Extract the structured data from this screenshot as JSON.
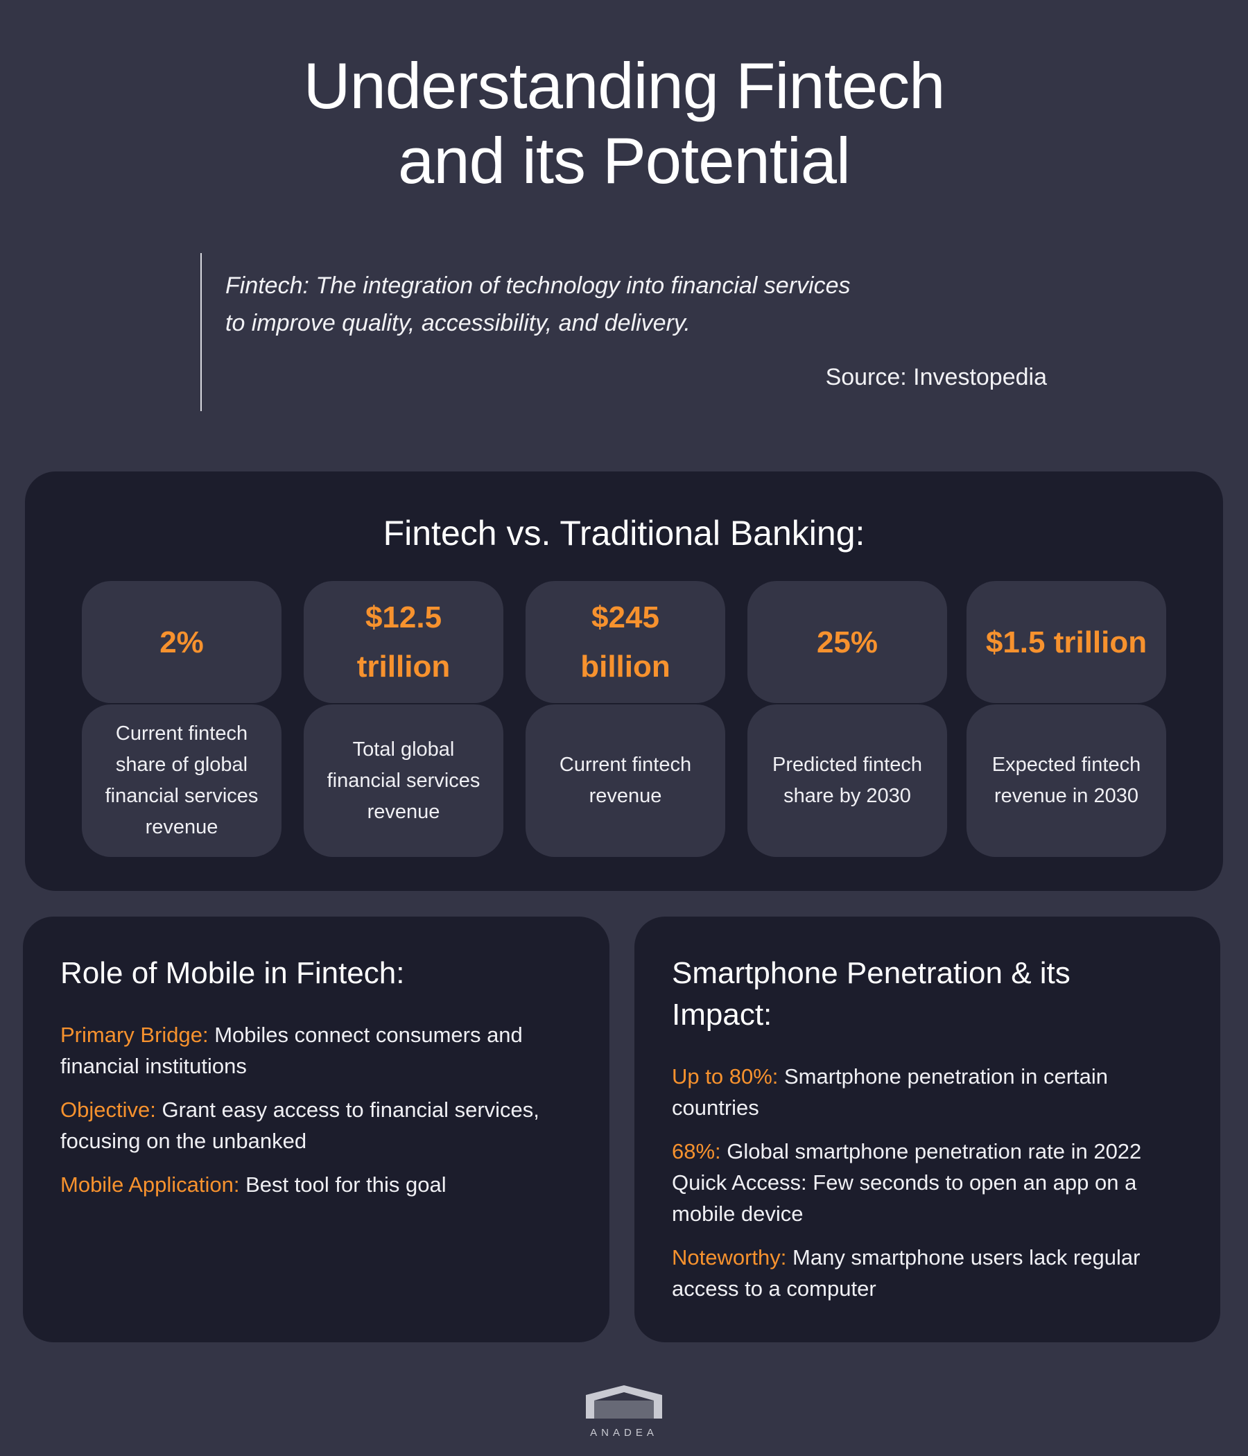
{
  "title": [
    "Understanding Fintech",
    "and its Potential"
  ],
  "definition": {
    "text": [
      "Fintech: The integration of technology into financial services",
      "to improve quality, accessibility, and delivery."
    ],
    "source": "Source: Investopedia"
  },
  "comparison": {
    "title": "Fintech vs. Traditional Banking:",
    "stats": [
      {
        "value": "2%",
        "label": "Current fintech share of global financial services revenue"
      },
      {
        "value": "$12.5 trillion",
        "label": "Total global financial services revenue"
      },
      {
        "value": "$245 billion",
        "label": "Current fintech revenue"
      },
      {
        "value": "25%",
        "label": "Predicted fintech share by 2030"
      },
      {
        "value": "$1.5 trillion",
        "label": "Expected fintech revenue in 2030"
      }
    ]
  },
  "mobile": {
    "title": "Role of Mobile in Fintech:",
    "items": [
      {
        "key": "Primary Bridge:",
        "text": " Mobiles connect consumers and financial institutions"
      },
      {
        "key": "Objective:",
        "text": " Grant easy access to financial services, focusing on the unbanked"
      },
      {
        "key": "Mobile Application:",
        "text": " Best tool for this goal"
      }
    ]
  },
  "smartphone": {
    "title": "Smartphone Penetration & its Impact:",
    "items": [
      {
        "key": "Up to 80%:",
        "text": " Smartphone penetration in certain countries"
      },
      {
        "key": "68%:",
        "text": " Global smartphone penetration rate in 2022 Quick Access: Few seconds to open an app on a mobile device"
      },
      {
        "key": "Noteworthy:",
        "text": " Many smartphone users lack regular access to a computer"
      }
    ]
  },
  "brand": {
    "name": "ANADEA",
    "logo_icon": "anadea-roof-logo-icon",
    "accent_color": "#f7922e"
  }
}
